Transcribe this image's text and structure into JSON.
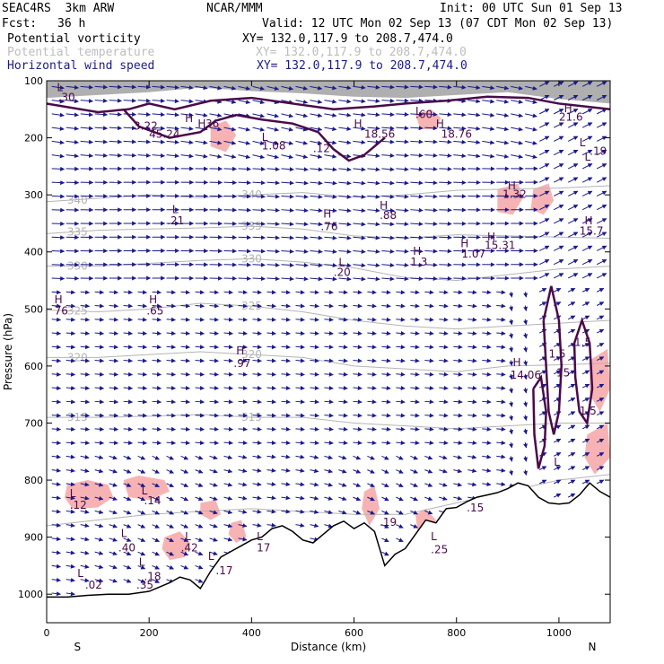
{
  "header": {
    "model": "SEAC4RS  3km ARW",
    "center": "NCAR/MMM",
    "init": "Init: 00 UTC Sun 01 Sep 13",
    "fcst_label": "Fcst:",
    "fcst_value": "36 h",
    "valid": "Valid: 12 UTC Mon 02 Sep 13 (07 CDT Mon 02 Sep 13)",
    "fields": [
      {
        "name": "Potential vorticity",
        "xy": "XY= 132.0,117.9 to 208.7,474.0",
        "color": "#000000"
      },
      {
        "name": "Potential temperature",
        "xy": "XY= 132.0,117.9 to 208.7,474.0",
        "color": "#bdbdbd"
      },
      {
        "name": "Horizontal wind speed",
        "xy": "XY= 132.0,117.9 to 208.7,474.0",
        "color": "#1a1a8c"
      }
    ]
  },
  "chart_data": {
    "type": "cross-section",
    "title": "Potential vorticity / Potential temperature / Horizontal wind speed",
    "xlabel": "Distance (km)",
    "ylabel": "Pressure (hPa)",
    "xlim": [
      0,
      1100
    ],
    "ylim": [
      1050,
      100
    ],
    "x_ticks": [
      0,
      200,
      400,
      600,
      800,
      1000
    ],
    "y_ticks": [
      100,
      200,
      300,
      400,
      500,
      600,
      700,
      800,
      900,
      1000
    ],
    "end_labels": {
      "left": "S",
      "right": "N"
    },
    "colors": {
      "wind": "#1a1a8c",
      "theta": "#b4b4b4",
      "pv_contour": "#4a0a4a",
      "pv_shade_pos": "#f7b3b3",
      "terrain": "#000000",
      "upper_shade": "#6e6e6e"
    },
    "theta_contours": [
      {
        "value": 340,
        "label": "340",
        "points": [
          [
            0,
            312
          ],
          [
            100,
            306
          ],
          [
            200,
            300
          ],
          [
            300,
            305
          ],
          [
            400,
            300
          ],
          [
            500,
            296
          ],
          [
            600,
            304
          ],
          [
            700,
            300
          ],
          [
            800,
            292
          ],
          [
            900,
            290
          ],
          [
            1000,
            288
          ],
          [
            1100,
            284
          ]
        ]
      },
      {
        "value": 335,
        "label": "335",
        "points": [
          [
            0,
            368
          ],
          [
            100,
            362
          ],
          [
            200,
            360
          ],
          [
            300,
            358
          ],
          [
            400,
            355
          ],
          [
            500,
            360
          ],
          [
            600,
            372
          ],
          [
            700,
            376
          ],
          [
            800,
            370
          ],
          [
            900,
            372
          ],
          [
            1000,
            374
          ],
          [
            1100,
            376
          ]
        ]
      },
      {
        "value": 330,
        "label": "330",
        "points": [
          [
            0,
            425
          ],
          [
            100,
            425
          ],
          [
            200,
            420
          ],
          [
            300,
            415
          ],
          [
            400,
            412
          ],
          [
            500,
            418
          ],
          [
            600,
            428
          ],
          [
            700,
            445
          ],
          [
            800,
            450
          ],
          [
            900,
            440
          ],
          [
            1000,
            430
          ],
          [
            1100,
            425
          ]
        ]
      },
      {
        "value": 325,
        "label": "325",
        "points": [
          [
            0,
            502
          ],
          [
            100,
            505
          ],
          [
            200,
            500
          ],
          [
            300,
            490
          ],
          [
            400,
            495
          ],
          [
            500,
            505
          ],
          [
            600,
            520
          ],
          [
            700,
            530
          ],
          [
            800,
            535
          ],
          [
            900,
            530
          ],
          [
            1000,
            525
          ],
          [
            1100,
            520
          ]
        ]
      },
      {
        "value": 320,
        "label": "320",
        "points": [
          [
            0,
            585
          ],
          [
            100,
            585
          ],
          [
            200,
            580
          ],
          [
            300,
            575
          ],
          [
            400,
            580
          ],
          [
            500,
            585
          ],
          [
            600,
            600
          ],
          [
            700,
            605
          ],
          [
            800,
            610
          ],
          [
            900,
            600
          ],
          [
            1000,
            598
          ],
          [
            1100,
            595
          ]
        ]
      },
      {
        "value": 315,
        "label": "315",
        "points": [
          [
            0,
            690
          ],
          [
            100,
            690
          ],
          [
            200,
            688
          ],
          [
            300,
            685
          ],
          [
            400,
            690
          ],
          [
            500,
            690
          ],
          [
            600,
            700
          ],
          [
            700,
            705
          ],
          [
            800,
            710
          ],
          [
            900,
            705
          ],
          [
            1000,
            700
          ],
          [
            1100,
            700
          ]
        ]
      },
      {
        "value": 310,
        "label": "",
        "points": [
          [
            0,
            880
          ],
          [
            100,
            870
          ],
          [
            200,
            860
          ],
          [
            300,
            855
          ],
          [
            400,
            850
          ],
          [
            500,
            855
          ],
          [
            600,
            860
          ],
          [
            700,
            860
          ],
          [
            800,
            840
          ],
          [
            900,
            820
          ],
          [
            1000,
            800
          ],
          [
            1100,
            790
          ]
        ]
      }
    ],
    "terrain": [
      [
        0,
        1005
      ],
      [
        40,
        1005
      ],
      [
        80,
        1002
      ],
      [
        120,
        1000
      ],
      [
        160,
        1000
      ],
      [
        200,
        995
      ],
      [
        240,
        980
      ],
      [
        260,
        970
      ],
      [
        280,
        975
      ],
      [
        300,
        990
      ],
      [
        320,
        960
      ],
      [
        340,
        935
      ],
      [
        360,
        925
      ],
      [
        380,
        915
      ],
      [
        400,
        905
      ],
      [
        420,
        900
      ],
      [
        440,
        885
      ],
      [
        460,
        880
      ],
      [
        480,
        890
      ],
      [
        500,
        905
      ],
      [
        520,
        910
      ],
      [
        540,
        895
      ],
      [
        560,
        880
      ],
      [
        580,
        872
      ],
      [
        600,
        885
      ],
      [
        620,
        875
      ],
      [
        640,
        890
      ],
      [
        660,
        950
      ],
      [
        680,
        930
      ],
      [
        700,
        920
      ],
      [
        720,
        895
      ],
      [
        740,
        870
      ],
      [
        760,
        875
      ],
      [
        780,
        850
      ],
      [
        800,
        848
      ],
      [
        820,
        838
      ],
      [
        840,
        830
      ],
      [
        860,
        826
      ],
      [
        880,
        822
      ],
      [
        900,
        815
      ],
      [
        920,
        805
      ],
      [
        940,
        810
      ],
      [
        960,
        830
      ],
      [
        980,
        840
      ],
      [
        1000,
        842
      ],
      [
        1020,
        840
      ],
      [
        1040,
        826
      ],
      [
        1060,
        805
      ],
      [
        1080,
        820
      ],
      [
        1100,
        830
      ]
    ],
    "annotations": [
      {
        "text": "L",
        "x": 20,
        "y": 118
      },
      {
        "text": ".30",
        "x": 22,
        "y": 135
      },
      {
        "text": "H",
        "x": 295,
        "y": 182
      },
      {
        "text": "36",
        "x": 310,
        "y": 182
      },
      {
        "text": "H",
        "x": 600,
        "y": 182
      },
      {
        "text": "18.56",
        "x": 620,
        "y": 200
      },
      {
        "text": "H",
        "x": 760,
        "y": 182
      },
      {
        "text": "18.76",
        "x": 770,
        "y": 200
      },
      {
        "text": ".60",
        "x": 720,
        "y": 165
      },
      {
        "text": "3.22",
        "x": 170,
        "y": 186
      },
      {
        "text": "45.24",
        "x": 200,
        "y": 200
      },
      {
        "text": "L",
        "x": 420,
        "y": 205
      },
      {
        "text": "1.08",
        "x": 420,
        "y": 220
      },
      {
        "text": "H",
        "x": 1010,
        "y": 155
      },
      {
        "text": "21.6",
        "x": 1000,
        "y": 170
      },
      {
        "text": "H",
        "x": 900,
        "y": 290
      },
      {
        "text": "1.32",
        "x": 890,
        "y": 305
      },
      {
        "text": "L",
        "x": 245,
        "y": 332
      },
      {
        "text": ".21",
        "x": 235,
        "y": 352
      },
      {
        "text": "H",
        "x": 650,
        "y": 325
      },
      {
        "text": ".88",
        "x": 650,
        "y": 342
      },
      {
        "text": "H",
        "x": 540,
        "y": 340
      },
      {
        "text": ".76",
        "x": 535,
        "y": 362
      },
      {
        "text": "H",
        "x": 1050,
        "y": 352
      },
      {
        "text": "15.7",
        "x": 1040,
        "y": 370
      },
      {
        "text": "H",
        "x": 860,
        "y": 380
      },
      {
        "text": "15.31",
        "x": 855,
        "y": 395
      },
      {
        "text": "H",
        "x": 715,
        "y": 405
      },
      {
        "text": "1.3",
        "x": 710,
        "y": 424
      },
      {
        "text": "H",
        "x": 808,
        "y": 392
      },
      {
        "text": "1.07",
        "x": 810,
        "y": 410
      },
      {
        "text": "L",
        "x": 570,
        "y": 425
      },
      {
        "text": ".20",
        "x": 560,
        "y": 442
      },
      {
        "text": "H",
        "x": 15,
        "y": 490
      },
      {
        "text": "76",
        "x": 15,
        "y": 510
      },
      {
        "text": "H",
        "x": 200,
        "y": 490
      },
      {
        "text": ".65",
        "x": 195,
        "y": 510
      },
      {
        "text": "H",
        "x": 370,
        "y": 580
      },
      {
        "text": ".97",
        "x": 365,
        "y": 602
      },
      {
        "text": "H",
        "x": 910,
        "y": 600
      },
      {
        "text": "14.06",
        "x": 905,
        "y": 622
      },
      {
        "text": "1.5",
        "x": 980,
        "y": 585
      },
      {
        "text": "1.5",
        "x": 1030,
        "y": 565
      },
      {
        "text": "1.5",
        "x": 1040,
        "y": 685
      },
      {
        "text": "15",
        "x": 995,
        "y": 618
      },
      {
        "text": "L",
        "x": 45,
        "y": 830
      },
      {
        "text": ".12",
        "x": 45,
        "y": 850
      },
      {
        "text": "L",
        "x": 185,
        "y": 825
      },
      {
        "text": ".14",
        "x": 190,
        "y": 842
      },
      {
        "text": "L",
        "x": 990,
        "y": 775
      },
      {
        "text": ".15",
        "x": 820,
        "y": 855
      },
      {
        "text": ".19",
        "x": 650,
        "y": 880
      },
      {
        "text": "L",
        "x": 750,
        "y": 905
      },
      {
        "text": ".25",
        "x": 750,
        "y": 928
      },
      {
        "text": "L",
        "x": 145,
        "y": 900
      },
      {
        "text": ".40",
        "x": 140,
        "y": 925
      },
      {
        "text": "L",
        "x": 270,
        "y": 905
      },
      {
        "text": ".42",
        "x": 262,
        "y": 925
      },
      {
        "text": "L",
        "x": 410,
        "y": 905
      },
      {
        "text": "17",
        "x": 410,
        "y": 925
      },
      {
        "text": "L",
        "x": 315,
        "y": 940
      },
      {
        "text": ".17",
        "x": 330,
        "y": 965
      },
      {
        "text": "L",
        "x": 180,
        "y": 950
      },
      {
        "text": ".18",
        "x": 190,
        "y": 975
      },
      {
        "text": "L",
        "x": 60,
        "y": 970
      },
      {
        "text": ".02",
        "x": 75,
        "y": 990
      },
      {
        "text": ".35",
        "x": 175,
        "y": 990
      },
      {
        "text": "L",
        "x": 720,
        "y": 160
      },
      {
        "text": "L",
        "x": 1040,
        "y": 215
      },
      {
        "text": "L",
        "x": 1050,
        "y": 240
      },
      {
        "text": ".19",
        "x": 1060,
        "y": 230
      },
      {
        "text": "H",
        "x": 270,
        "y": 172
      },
      {
        "text": ".12",
        "x": 520,
        "y": 225
      }
    ]
  }
}
